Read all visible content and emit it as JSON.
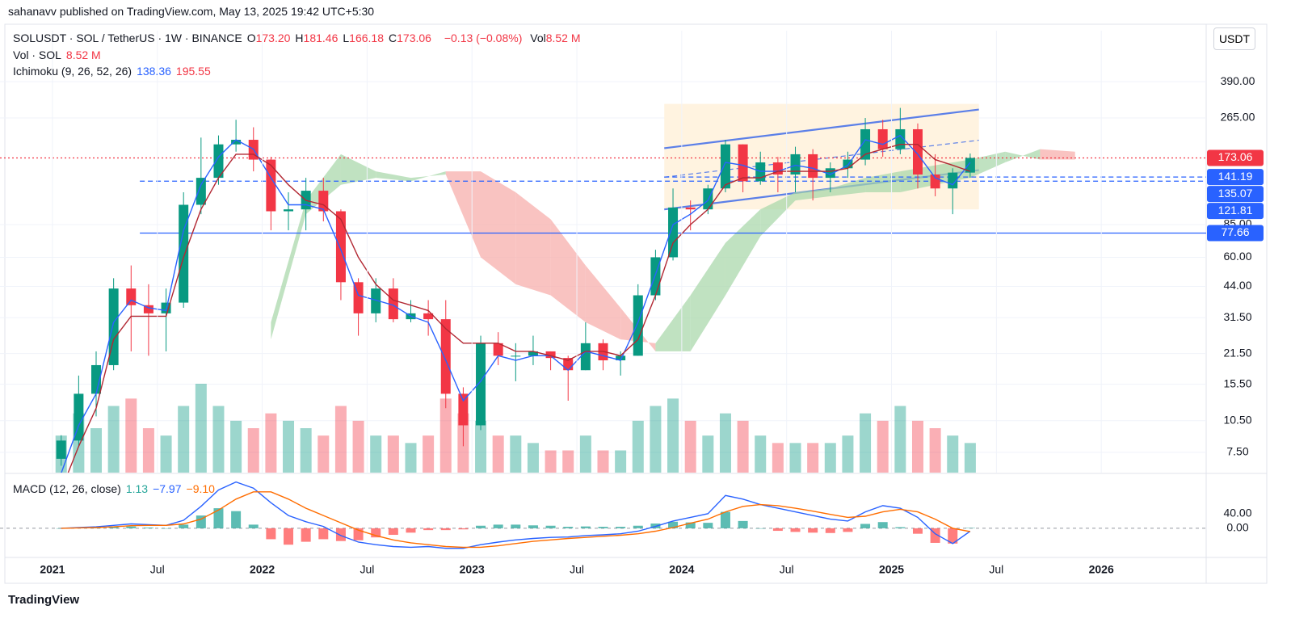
{
  "published": "sahanavv published on TradingView.com, May 13, 2025 19:42 UTC+5:30",
  "currency_button": "USDT",
  "brand": "TradingView",
  "legend": {
    "symbol": "SOLUSDT · SOL / TetherUS · 1W · BINANCE",
    "ohlc": [
      {
        "key": "O",
        "value": "173.20"
      },
      {
        "key": "H",
        "value": "181.46"
      },
      {
        "key": "L",
        "value": "166.18"
      },
      {
        "key": "C",
        "value": "173.06"
      }
    ],
    "change": "−0.13 (−0.08%)",
    "vol_key": "Vol",
    "vol_value": "8.52 M",
    "vol_study": "Vol · SOL",
    "vol_study_value": "8.52 M",
    "ichimoku": "Ichimoku (9, 26, 52, 26)",
    "ichimoku_values": [
      "138.36",
      "195.55"
    ],
    "macd": "MACD (12, 26, close)",
    "macd_values": [
      "1.13",
      "−7.97",
      "−9.10"
    ]
  },
  "chart_data": [
    {
      "type": "candlestick",
      "log_scale": true,
      "grid": true,
      "up_color": "#089981",
      "down_color": "#f23645",
      "xlim": [
        "2020-10",
        "2026-07"
      ],
      "ylim": [
        6.04,
        672
      ],
      "yticks": [
        {
          "value": 390,
          "label": "390.00"
        },
        {
          "value": 265,
          "label": "265.00"
        },
        {
          "value": 85,
          "label": "85.00"
        },
        {
          "value": 60,
          "label": "60.00"
        },
        {
          "value": 44,
          "label": "44.00"
        },
        {
          "value": 31.5,
          "label": "31.50"
        },
        {
          "value": 21.5,
          "label": "21.50"
        },
        {
          "value": 15.5,
          "label": "15.50"
        },
        {
          "value": 10.5,
          "label": "10.50"
        },
        {
          "value": 7.5,
          "label": "7.50"
        }
      ],
      "x": [
        "2021-01",
        "2021-02",
        "2021-03",
        "2021-04",
        "2021-05",
        "2021-06",
        "2021-07",
        "2021-08",
        "2021-09",
        "2021-10",
        "2021-11",
        "2021-12",
        "2022-01",
        "2022-02",
        "2022-03",
        "2022-04",
        "2022-05",
        "2022-06",
        "2022-07",
        "2022-08",
        "2022-09",
        "2022-10",
        "2022-11",
        "2022-12",
        "2023-01",
        "2023-02",
        "2023-03",
        "2023-04",
        "2023-05",
        "2023-06",
        "2023-07",
        "2023-08",
        "2023-09",
        "2023-10",
        "2023-11",
        "2023-12",
        "2024-01",
        "2024-02",
        "2024-03",
        "2024-04",
        "2024-05",
        "2024-06",
        "2024-07",
        "2024-08",
        "2024-09",
        "2024-10",
        "2024-11",
        "2024-12",
        "2025-01",
        "2025-02",
        "2025-03",
        "2025-04",
        "2025-05"
      ],
      "open": [
        7,
        8.5,
        14,
        19,
        43,
        36,
        33,
        37,
        105,
        140,
        200,
        210,
        170,
        98,
        100,
        122,
        98,
        46,
        33,
        43,
        31,
        33,
        31,
        14,
        10,
        24,
        21,
        21,
        22,
        20.5,
        18,
        24,
        20,
        21,
        40,
        60,
        102,
        100,
        125,
        200,
        135,
        165,
        145,
        180,
        140,
        155,
        170,
        235,
        190,
        235,
        145,
        125,
        148
      ],
      "high": [
        9,
        17,
        22,
        48,
        55,
        45,
        43,
        120,
        215,
        220,
        260,
        240,
        175,
        120,
        140,
        140,
        100,
        48,
        48,
        48,
        38,
        38,
        38,
        15,
        26,
        27,
        24,
        26,
        22,
        21,
        30,
        25,
        22,
        45,
        65,
        125,
        110,
        130,
        210,
        200,
        185,
        175,
        195,
        190,
        165,
        185,
        265,
        260,
        295,
        250,
        180,
        155,
        181.46
      ],
      "low": [
        6.5,
        8,
        11,
        18,
        22,
        21,
        22,
        35,
        95,
        130,
        185,
        150,
        80,
        80,
        80,
        88,
        38,
        26,
        30,
        30,
        30,
        26,
        12,
        8,
        9.5,
        19,
        16,
        19,
        18,
        13,
        18,
        18,
        17,
        21,
        38,
        58,
        80,
        95,
        120,
        120,
        130,
        120,
        120,
        110,
        120,
        140,
        160,
        175,
        180,
        125,
        115,
        95,
        140
      ],
      "close": [
        8.5,
        14,
        19,
        43,
        36,
        33,
        37,
        105,
        140,
        200,
        210,
        170,
        98,
        100,
        122,
        98,
        46,
        33,
        43,
        31,
        33,
        31,
        14,
        10,
        24,
        21,
        21,
        22,
        20.5,
        18,
        24,
        20,
        21,
        40,
        60,
        102,
        100,
        125,
        200,
        135,
        165,
        145,
        180,
        140,
        155,
        170,
        235,
        190,
        235,
        145,
        125,
        148,
        173.06
      ],
      "volume": [
        5,
        8,
        6,
        9,
        10,
        6,
        5,
        9,
        12,
        9,
        7,
        6,
        8,
        7,
        6,
        5,
        9,
        7,
        5,
        5,
        4,
        5,
        10,
        8,
        7,
        5,
        5,
        4,
        3,
        3,
        5,
        3,
        3,
        7,
        9,
        10,
        7,
        5,
        8,
        7,
        5,
        4,
        4,
        4,
        4,
        5,
        8,
        7,
        9,
        7,
        6,
        5,
        4
      ],
      "series": [
        {
          "name": "Conversion Line",
          "color": "#2962ff",
          "values": [
            6,
            10,
            14,
            30,
            38,
            35,
            34,
            80,
            130,
            175,
            210,
            190,
            140,
            105,
            105,
            100,
            65,
            40,
            38,
            36,
            32,
            30,
            20,
            13,
            16,
            21,
            20,
            21,
            21,
            18,
            22,
            21,
            20,
            30,
            50,
            85,
            95,
            110,
            165,
            160,
            150,
            150,
            160,
            155,
            145,
            160,
            210,
            200,
            220,
            180,
            140,
            130,
            165
          ]
        },
        {
          "name": "Base Line",
          "color": "#b22833",
          "values": [
            5,
            8,
            12,
            25,
            32,
            32,
            32,
            60,
            100,
            140,
            180,
            180,
            160,
            130,
            110,
            105,
            90,
            60,
            45,
            38,
            36,
            34,
            28,
            24,
            24,
            24,
            22,
            22,
            21,
            20,
            22,
            22,
            21,
            25,
            40,
            70,
            85,
            100,
            130,
            140,
            140,
            150,
            150,
            150,
            150,
            155,
            180,
            190,
            200,
            200,
            170,
            160,
            150
          ]
        }
      ],
      "cloud": {
        "x": [
          "2022-01",
          "2022-03",
          "2022-05",
          "2022-07",
          "2022-09",
          "2022-11",
          "2023-01",
          "2023-03",
          "2023-05",
          "2023-07",
          "2023-09",
          "2023-11",
          "2024-01",
          "2024-03",
          "2024-05",
          "2024-07",
          "2024-09",
          "2024-11",
          "2025-01",
          "2025-03",
          "2025-05",
          "2025-07",
          "2025-09",
          "2025-11"
        ],
        "span_a": [
          30,
          110,
          180,
          150,
          140,
          145,
          60,
          45,
          40,
          30,
          25,
          24,
          40,
          70,
          100,
          120,
          125,
          140,
          150,
          160,
          170,
          185,
          170,
          170
        ],
        "span_b": [
          25,
          95,
          130,
          140,
          135,
          150,
          150,
          120,
          90,
          55,
          35,
          22,
          22,
          40,
          75,
          110,
          115,
          120,
          120,
          130,
          140,
          165,
          190,
          185
        ],
        "up_color": "#a5d6a7",
        "down_color": "#f7a9a7"
      },
      "drawings": [
        {
          "type": "box",
          "x": [
            "2023-12",
            "2025-06"
          ],
          "y": [
            100,
            308
          ],
          "color": "#fff3e0"
        },
        {
          "type": "line",
          "x": [
            "2023-12",
            "2025-06"
          ],
          "y": [
            192,
            290
          ],
          "color": "#5b7fe8"
        },
        {
          "type": "line",
          "x": [
            "2023-12",
            "2025-06"
          ],
          "y": [
            100,
            152
          ],
          "color": "#5b7fe8"
        },
        {
          "type": "dashed",
          "x": [
            "2023-12",
            "2025-06"
          ],
          "y": [
            141,
            209
          ],
          "color": "#5b7fe8"
        }
      ],
      "price_lines": [
        {
          "value": 173.06,
          "color": "#f23645",
          "style": "dotted",
          "from": "2020-10"
        },
        {
          "value": 141.19,
          "color": "#2962ff",
          "style": "dashed",
          "from": "2023-12"
        },
        {
          "value": 135.07,
          "color": "#2962ff",
          "style": "dashed",
          "from": "2021-06"
        },
        {
          "value": 121.81,
          "color": "#2962ff",
          "style": "none",
          "from": "2025-06"
        },
        {
          "value": 77.66,
          "color": "#2962ff",
          "style": "solid",
          "from": "2021-06"
        }
      ]
    },
    {
      "type": "macd",
      "xlim": [
        "2020-10",
        "2026-07"
      ],
      "ylim": [
        -80,
        146
      ],
      "yticks": [
        {
          "value": 40,
          "label": "40.00"
        },
        {
          "value": 0,
          "label": "0.00"
        }
      ],
      "xticks": [
        {
          "value": "2021-01",
          "label": "2021"
        },
        {
          "value": "2021-07",
          "label": "Jul"
        },
        {
          "value": "2022-01",
          "label": "2022"
        },
        {
          "value": "2022-07",
          "label": "Jul"
        },
        {
          "value": "2023-01",
          "label": "2023"
        },
        {
          "value": "2023-07",
          "label": "Jul"
        },
        {
          "value": "2024-01",
          "label": "2024"
        },
        {
          "value": "2024-07",
          "label": "Jul"
        },
        {
          "value": "2025-01",
          "label": "2025"
        },
        {
          "value": "2025-07",
          "label": "Jul"
        },
        {
          "value": "2026-01",
          "label": "2026"
        }
      ],
      "x": [
        "2021-01",
        "2021-02",
        "2021-03",
        "2021-04",
        "2021-05",
        "2021-06",
        "2021-07",
        "2021-08",
        "2021-09",
        "2021-10",
        "2021-11",
        "2021-12",
        "2022-01",
        "2022-02",
        "2022-03",
        "2022-04",
        "2022-05",
        "2022-06",
        "2022-07",
        "2022-08",
        "2022-09",
        "2022-10",
        "2022-11",
        "2022-12",
        "2023-01",
        "2023-02",
        "2023-03",
        "2023-04",
        "2023-05",
        "2023-06",
        "2023-07",
        "2023-08",
        "2023-09",
        "2023-10",
        "2023-11",
        "2023-12",
        "2024-01",
        "2024-02",
        "2024-03",
        "2024-04",
        "2024-05",
        "2024-06",
        "2024-07",
        "2024-08",
        "2024-09",
        "2024-10",
        "2024-11",
        "2024-12",
        "2025-01",
        "2025-02",
        "2025-03",
        "2025-04",
        "2025-05"
      ],
      "histogram": {
        "up_color": "#26a69a",
        "down_color": "#ff5252",
        "values": [
          0,
          1,
          2,
          4,
          5,
          2,
          0,
          10,
          35,
          55,
          47,
          10,
          -30,
          -45,
          -37,
          -30,
          -35,
          -33,
          -25,
          -18,
          -12,
          -5,
          -5,
          -3,
          7,
          10,
          10,
          8,
          7,
          4,
          5,
          4,
          4,
          7,
          13,
          18,
          16,
          15,
          45,
          20,
          0,
          -7,
          -10,
          -12,
          -13,
          -10,
          12,
          17,
          3,
          -15,
          -40,
          -42,
          1.13
        ]
      },
      "series": [
        {
          "name": "MACD",
          "color": "#2962ff",
          "values": [
            0,
            2,
            4,
            8,
            12,
            10,
            8,
            22,
            60,
            105,
            127,
            110,
            70,
            35,
            18,
            5,
            -20,
            -38,
            -45,
            -50,
            -52,
            -50,
            -55,
            -55,
            -45,
            -38,
            -32,
            -28,
            -25,
            -24,
            -20,
            -18,
            -15,
            -8,
            5,
            20,
            30,
            40,
            90,
            80,
            65,
            55,
            45,
            35,
            25,
            20,
            45,
            62,
            55,
            30,
            -15,
            -42,
            -7.97
          ]
        },
        {
          "name": "Signal",
          "color": "#ff6d00",
          "values": [
            0,
            1,
            2,
            4,
            7,
            8,
            8,
            12,
            25,
            50,
            80,
            100,
            100,
            80,
            55,
            35,
            15,
            -5,
            -20,
            -32,
            -40,
            -45,
            -50,
            -52,
            -52,
            -48,
            -42,
            -36,
            -32,
            -28,
            -25,
            -22,
            -19,
            -15,
            -8,
            2,
            14,
            25,
            45,
            60,
            65,
            62,
            55,
            47,
            38,
            30,
            33,
            45,
            52,
            45,
            25,
            0,
            -9.1
          ]
        }
      ]
    }
  ]
}
